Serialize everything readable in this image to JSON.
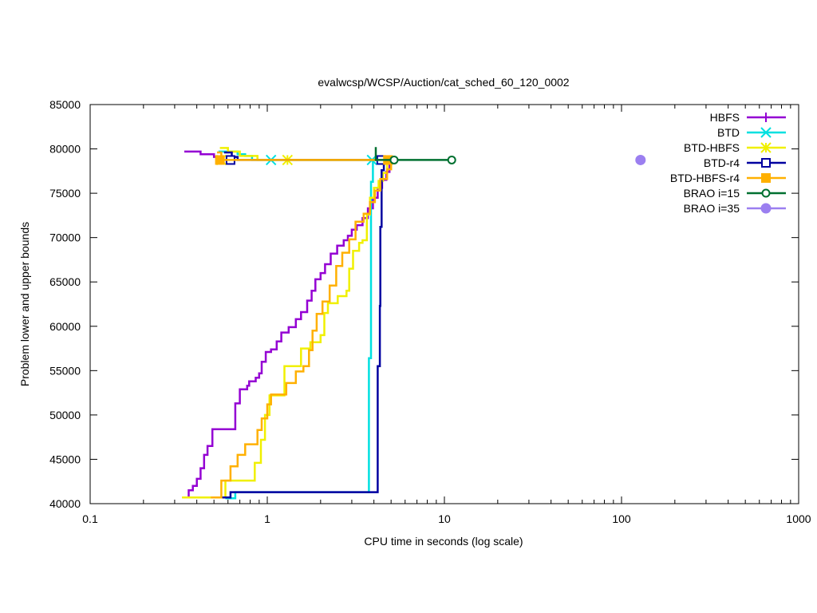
{
  "chart_data": {
    "type": "line",
    "title": "evalwcsp/WCSP/Auction/cat_sched_60_120_0002",
    "xlabel": "CPU time in seconds (log scale)",
    "ylabel": "Problem lower and upper bounds",
    "xscale": "log",
    "xlim": [
      0.1,
      1000
    ],
    "ylim": [
      40000,
      85000
    ],
    "xticks": [
      {
        "value": 0.1,
        "label": "0.1"
      },
      {
        "value": 1,
        "label": "1"
      },
      {
        "value": 10,
        "label": "10"
      },
      {
        "value": 100,
        "label": "100"
      },
      {
        "value": 1000,
        "label": "1000"
      }
    ],
    "yticks": [
      {
        "value": 40000,
        "label": "40000"
      },
      {
        "value": 45000,
        "label": "45000"
      },
      {
        "value": 50000,
        "label": "50000"
      },
      {
        "value": 55000,
        "label": "55000"
      },
      {
        "value": 60000,
        "label": "60000"
      },
      {
        "value": 65000,
        "label": "65000"
      },
      {
        "value": 70000,
        "label": "70000"
      },
      {
        "value": 75000,
        "label": "75000"
      },
      {
        "value": 80000,
        "label": "80000"
      },
      {
        "value": 85000,
        "label": "85000"
      }
    ],
    "grid": false,
    "legend_position": "top-right",
    "series": [
      {
        "name": "HBFS",
        "color": "#9400d3",
        "marker": "plus",
        "lower": [
          [
            0.36,
            40700
          ],
          [
            0.36,
            41500
          ],
          [
            0.38,
            42000
          ],
          [
            0.4,
            42800
          ],
          [
            0.42,
            44000
          ],
          [
            0.44,
            45500
          ],
          [
            0.46,
            46500
          ],
          [
            0.49,
            48400
          ],
          [
            0.66,
            48400
          ],
          [
            0.66,
            51300
          ],
          [
            0.69,
            51300
          ],
          [
            0.7,
            52900
          ],
          [
            0.77,
            53300
          ],
          [
            0.79,
            53800
          ],
          [
            0.86,
            54200
          ],
          [
            0.9,
            54700
          ],
          [
            0.93,
            56000
          ],
          [
            0.98,
            57100
          ],
          [
            1.05,
            57400
          ],
          [
            1.13,
            58300
          ],
          [
            1.2,
            59300
          ],
          [
            1.32,
            59900
          ],
          [
            1.45,
            60800
          ],
          [
            1.55,
            61600
          ],
          [
            1.68,
            62900
          ],
          [
            1.78,
            64000
          ],
          [
            1.87,
            65300
          ],
          [
            2.0,
            66000
          ],
          [
            2.12,
            67000
          ],
          [
            2.28,
            68200
          ],
          [
            2.48,
            69100
          ],
          [
            2.7,
            69700
          ],
          [
            2.85,
            70200
          ],
          [
            3.0,
            70900
          ],
          [
            3.2,
            71400
          ],
          [
            3.45,
            72200
          ],
          [
            3.7,
            73300
          ],
          [
            3.95,
            74500
          ],
          [
            4.2,
            75600
          ],
          [
            4.45,
            76500
          ],
          [
            4.7,
            77400
          ],
          [
            4.9,
            78300
          ]
        ],
        "upper": [
          [
            0.34,
            79700
          ],
          [
            0.42,
            79400
          ],
          [
            0.5,
            79100
          ],
          [
            0.55,
            78750
          ]
        ]
      },
      {
        "name": "BTD",
        "color": "#00e0e0",
        "marker": "x",
        "lower": [
          [
            0.58,
            40600
          ],
          [
            0.66,
            40600
          ],
          [
            0.66,
            41300
          ],
          [
            3.75,
            41300
          ],
          [
            3.75,
            56400
          ],
          [
            3.82,
            56400
          ],
          [
            3.85,
            76300
          ],
          [
            3.95,
            78900
          ]
        ],
        "upper": [
          [
            0.53,
            79700
          ],
          [
            0.68,
            79400
          ],
          [
            0.75,
            79200
          ],
          [
            0.82,
            79200
          ],
          [
            0.82,
            78750
          ],
          [
            3.95,
            78750
          ]
        ],
        "markers": [
          [
            1.05,
            78750
          ],
          [
            3.9,
            78750
          ]
        ]
      },
      {
        "name": "BTD-HBFS",
        "color": "#f0f000",
        "marker": "star",
        "lower": [
          [
            0.33,
            40700
          ],
          [
            0.53,
            40700
          ],
          [
            0.58,
            42600
          ],
          [
            0.85,
            42600
          ],
          [
            0.85,
            44600
          ],
          [
            0.92,
            47200
          ],
          [
            0.97,
            50000
          ],
          [
            1.03,
            52200
          ],
          [
            1.25,
            52200
          ],
          [
            1.25,
            55500
          ],
          [
            1.55,
            55500
          ],
          [
            1.55,
            57500
          ],
          [
            1.75,
            58200
          ],
          [
            2.0,
            59000
          ],
          [
            2.1,
            61500
          ],
          [
            2.2,
            62600
          ],
          [
            2.5,
            63400
          ],
          [
            2.8,
            64000
          ],
          [
            2.9,
            66500
          ],
          [
            3.05,
            68500
          ],
          [
            3.3,
            69400
          ],
          [
            3.45,
            69700
          ],
          [
            3.65,
            72600
          ],
          [
            3.8,
            74500
          ],
          [
            4.0,
            75600
          ],
          [
            4.25,
            76400
          ],
          [
            4.5,
            77300
          ],
          [
            4.75,
            78300
          ]
        ],
        "upper": [
          [
            0.54,
            80100
          ],
          [
            0.6,
            79700
          ],
          [
            0.7,
            79200
          ],
          [
            0.88,
            78750
          ],
          [
            4.9,
            78750
          ]
        ],
        "markers": [
          [
            0.55,
            78750
          ],
          [
            1.3,
            78750
          ]
        ]
      },
      {
        "name": "BTD-r4",
        "color": "#0000a0",
        "marker": "open-square",
        "lower": [
          [
            0.55,
            40700
          ],
          [
            0.62,
            40700
          ],
          [
            0.62,
            41300
          ],
          [
            4.2,
            41300
          ],
          [
            4.2,
            55500
          ],
          [
            4.28,
            55500
          ],
          [
            4.32,
            62300
          ],
          [
            4.35,
            71200
          ],
          [
            4.42,
            77600
          ],
          [
            4.55,
            78600
          ]
        ],
        "upper": [
          [
            0.57,
            79600
          ],
          [
            0.63,
            79100
          ],
          [
            0.68,
            78750
          ],
          [
            4.6,
            78750
          ]
        ],
        "markers": [
          [
            0.62,
            78750
          ],
          [
            4.4,
            78750
          ]
        ]
      },
      {
        "name": "BTD-HBFS-r4",
        "color": "#ffb000",
        "marker": "filled-square",
        "lower": [
          [
            0.48,
            40700
          ],
          [
            0.55,
            42600
          ],
          [
            0.62,
            44200
          ],
          [
            0.68,
            45500
          ],
          [
            0.75,
            46700
          ],
          [
            0.86,
            46700
          ],
          [
            0.88,
            48300
          ],
          [
            0.93,
            49600
          ],
          [
            1.0,
            51200
          ],
          [
            1.05,
            52300
          ],
          [
            1.25,
            52300
          ],
          [
            1.28,
            53600
          ],
          [
            1.45,
            54900
          ],
          [
            1.6,
            55500
          ],
          [
            1.72,
            57300
          ],
          [
            1.8,
            59500
          ],
          [
            1.9,
            61400
          ],
          [
            2.05,
            62800
          ],
          [
            2.25,
            64600
          ],
          [
            2.45,
            66800
          ],
          [
            2.65,
            68300
          ],
          [
            2.9,
            69800
          ],
          [
            3.15,
            71800
          ],
          [
            3.5,
            72700
          ],
          [
            3.8,
            74000
          ],
          [
            4.05,
            75300
          ],
          [
            4.35,
            76600
          ],
          [
            4.75,
            77700
          ],
          [
            5.0,
            78600
          ]
        ],
        "upper": [
          [
            0.52,
            79600
          ],
          [
            0.55,
            78750
          ],
          [
            5.0,
            78750
          ]
        ],
        "markers": [
          [
            0.54,
            78750
          ],
          [
            4.8,
            78750
          ]
        ]
      },
      {
        "name": "BRAO i=15",
        "color": "#007030",
        "marker": "open-circle",
        "lower": [],
        "upper": [
          [
            4.1,
            80200
          ],
          [
            4.1,
            78750
          ],
          [
            11.0,
            78750
          ]
        ],
        "markers": [
          [
            5.2,
            78750
          ],
          [
            11.0,
            78750
          ]
        ]
      },
      {
        "name": "BRAO i=35",
        "color": "#9b7ff0",
        "marker": "filled-circle",
        "lower": [],
        "upper": [],
        "markers": [
          [
            128,
            78750
          ]
        ]
      }
    ]
  }
}
